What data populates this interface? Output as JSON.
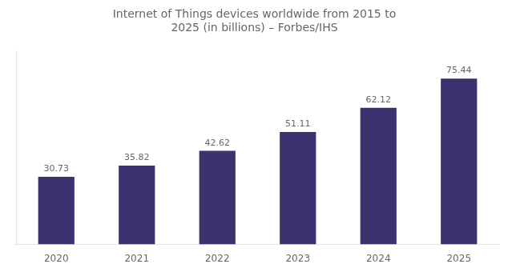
{
  "chart_data": {
    "type": "bar",
    "title": "Internet of Things devices worldwide from 2015 to\n2025 (in billions) – Forbes/IHS",
    "categories": [
      "2020",
      "2021",
      "2022",
      "2023",
      "2024",
      "2025"
    ],
    "values": [
      30.73,
      35.82,
      42.62,
      51.11,
      62.12,
      75.44
    ],
    "color": "#3b3370",
    "ylim": [
      0,
      88
    ],
    "grid": false,
    "data_labels": true,
    "tick_labels": "x"
  }
}
